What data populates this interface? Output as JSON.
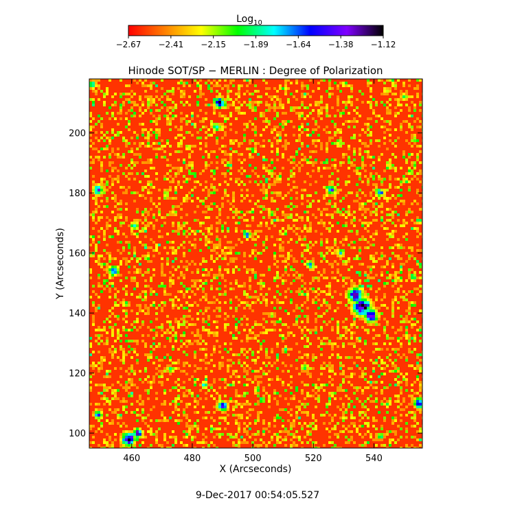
{
  "chart_data": {
    "type": "heatmap",
    "title": "Hinode SOT/SP − MERLIN : Degree of Polarization",
    "xlabel": "X (Arcseconds)",
    "ylabel": "Y (Arcseconds)",
    "xlim": [
      446,
      556
    ],
    "ylim": [
      95,
      218
    ],
    "x_ticks": [
      460,
      480,
      500,
      520,
      540
    ],
    "y_ticks": [
      100,
      120,
      140,
      160,
      180,
      200
    ],
    "colorbar": {
      "label": "Log",
      "label_sub": "10",
      "range": [
        -2.67,
        -1.12
      ],
      "ticks": [
        "−2.67",
        "−2.41",
        "−2.15",
        "−1.89",
        "−1.64",
        "−1.38",
        "−1.12"
      ],
      "colormap": [
        "#ff0000",
        "#ff8000",
        "#ffff00",
        "#00ff00",
        "#00ffff",
        "#0000ff",
        "#8000ff",
        "#000000"
      ]
    },
    "colorbar_scale": "log10",
    "background_level": -2.55,
    "features": [
      {
        "x": 536,
        "y": 142,
        "radius": 2.6,
        "level": -1.15
      },
      {
        "x": 534,
        "y": 146,
        "radius": 2.2,
        "level": -1.3
      },
      {
        "x": 539,
        "y": 139,
        "radius": 2.0,
        "level": -1.35
      },
      {
        "x": 459,
        "y": 98,
        "radius": 2.0,
        "level": -1.25
      },
      {
        "x": 462,
        "y": 100,
        "radius": 1.4,
        "level": -1.4
      },
      {
        "x": 489,
        "y": 210,
        "radius": 1.6,
        "level": -1.4
      },
      {
        "x": 555,
        "y": 110,
        "radius": 1.6,
        "level": -1.45
      },
      {
        "x": 454,
        "y": 154,
        "radius": 1.5,
        "level": -1.5
      },
      {
        "x": 449,
        "y": 181,
        "radius": 1.5,
        "level": -1.5
      },
      {
        "x": 490,
        "y": 109,
        "radius": 1.5,
        "level": -1.45
      },
      {
        "x": 526,
        "y": 181,
        "radius": 1.3,
        "level": -1.55
      },
      {
        "x": 542,
        "y": 180,
        "radius": 1.2,
        "level": -1.55
      },
      {
        "x": 519,
        "y": 156,
        "radius": 1.2,
        "level": -1.6
      },
      {
        "x": 498,
        "y": 166,
        "radius": 1.1,
        "level": -1.6
      },
      {
        "x": 461,
        "y": 169,
        "radius": 1.1,
        "level": -1.6
      },
      {
        "x": 449,
        "y": 106,
        "radius": 1.2,
        "level": -1.5
      },
      {
        "x": 488,
        "y": 202,
        "radius": 1.2,
        "level": -1.7
      },
      {
        "x": 529,
        "y": 160,
        "radius": 1.1,
        "level": -1.7
      },
      {
        "x": 447,
        "y": 216,
        "radius": 1.1,
        "level": -1.7
      },
      {
        "x": 542,
        "y": 99,
        "radius": 1.0,
        "level": -1.75
      },
      {
        "x": 553,
        "y": 152,
        "radius": 1.0,
        "level": -1.75
      },
      {
        "x": 484,
        "y": 116,
        "radius": 1.0,
        "level": -1.8
      },
      {
        "x": 473,
        "y": 121,
        "radius": 1.0,
        "level": -1.85
      },
      {
        "x": 503,
        "y": 111,
        "radius": 0.9,
        "level": -1.85
      },
      {
        "x": 517,
        "y": 122,
        "radius": 1.0,
        "level": -1.85
      },
      {
        "x": 458,
        "y": 143,
        "radius": 0.9,
        "level": -1.9
      },
      {
        "x": 550,
        "y": 212,
        "radius": 1.0,
        "level": -1.9
      },
      {
        "x": 544,
        "y": 214,
        "radius": 1.0,
        "level": -2.05
      }
    ]
  },
  "footer": {
    "timestamp": "9-Dec-2017 00:54:05.527"
  }
}
